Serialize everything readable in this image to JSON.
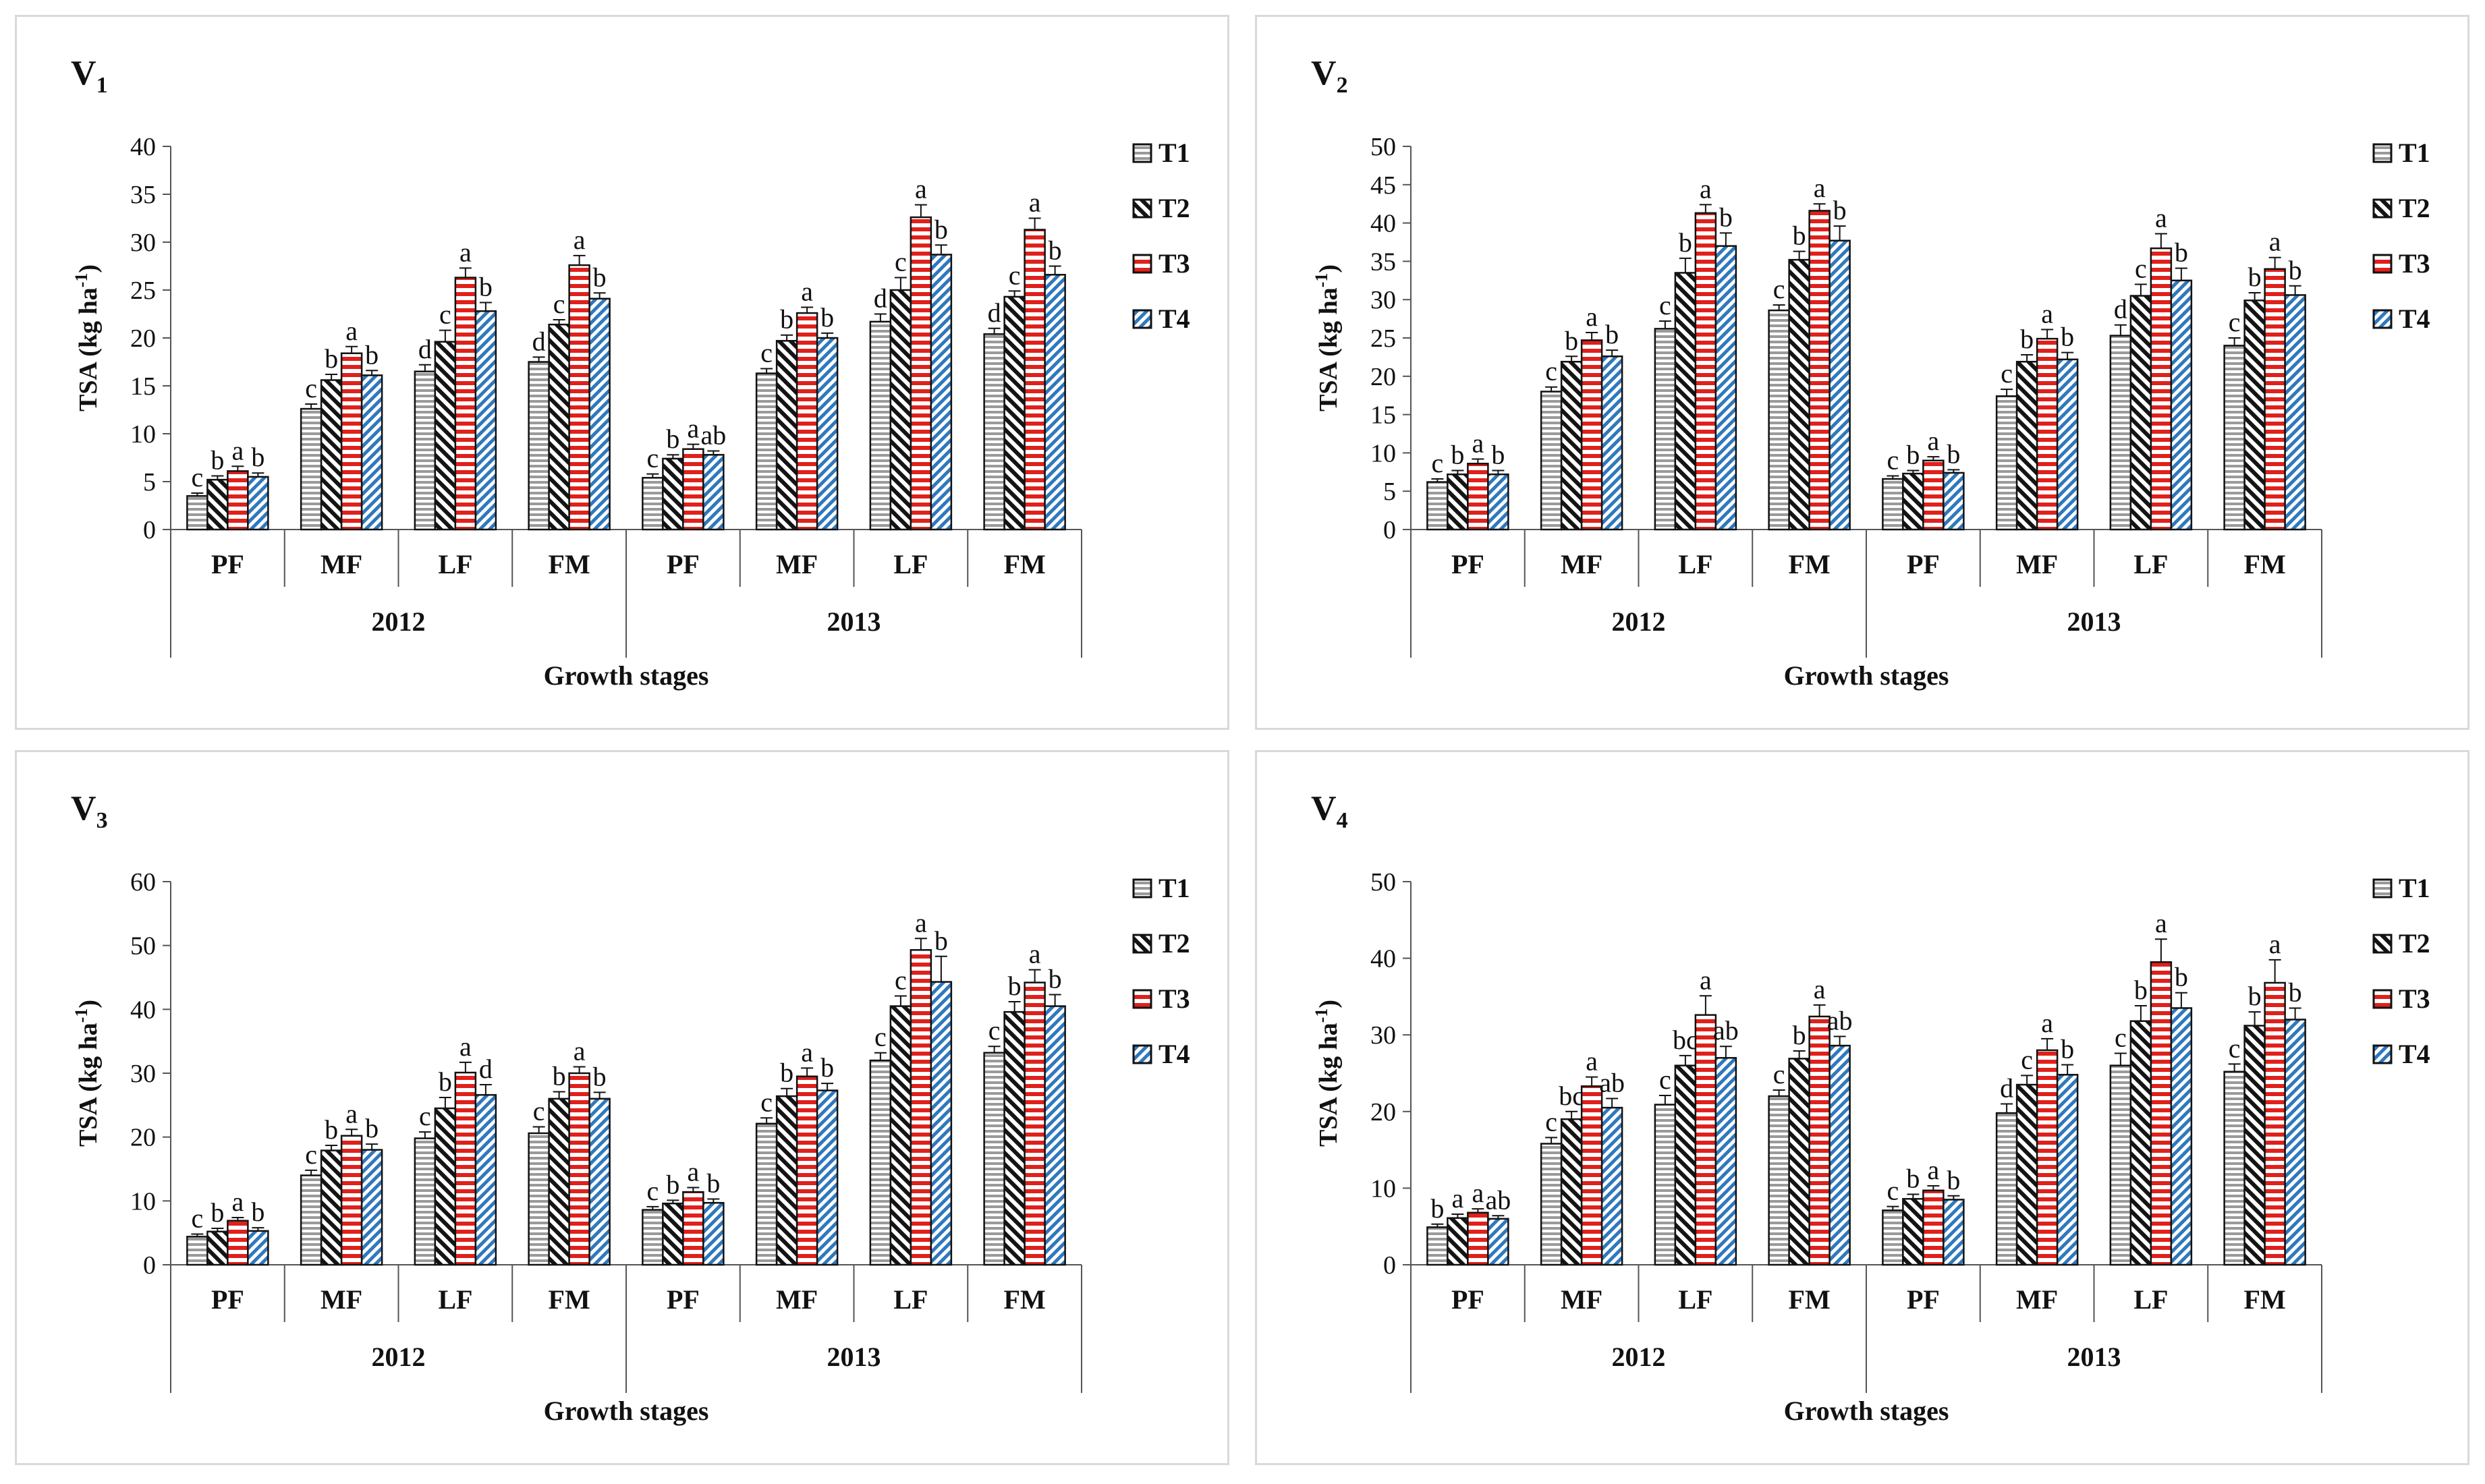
{
  "colors": {
    "T1": "#9a9a9a",
    "T2": "#141414",
    "T3": "#e0201b",
    "T4": "#2f78bd",
    "axis": "#555555",
    "border": "#d9d9d9"
  },
  "chart_data": [
    {
      "type": "bar",
      "title": "V",
      "title_subscript": "1",
      "ylabel": "TSA (kg ha",
      "ylabel_sup": "-1",
      "ylabel_close": ")",
      "xlabel": "Growth stages",
      "ylim": [
        0,
        40
      ],
      "yticks": [
        0,
        5,
        10,
        15,
        20,
        25,
        30,
        35,
        40
      ],
      "years": [
        "2012",
        "2013"
      ],
      "categories": [
        "PF",
        "MF",
        "LF",
        "FM",
        "PF",
        "MF",
        "LF",
        "FM"
      ],
      "series": [
        {
          "name": "T1",
          "values": [
            3.5,
            12.6,
            16.5,
            17.5,
            5.4,
            16.3,
            21.7,
            20.4
          ],
          "errors": [
            0.3,
            0.5,
            0.7,
            0.5,
            0.4,
            0.5,
            0.8,
            0.6
          ],
          "letters": [
            "c",
            "c",
            "d",
            "d",
            "c",
            "c",
            "d",
            "d"
          ]
        },
        {
          "name": "T2",
          "values": [
            5.2,
            15.6,
            19.6,
            21.4,
            7.4,
            19.7,
            25.0,
            24.3
          ],
          "errors": [
            0.4,
            0.6,
            1.2,
            0.5,
            0.4,
            0.6,
            1.3,
            0.6
          ],
          "letters": [
            "b",
            "b",
            "c",
            "c",
            "b",
            "b",
            "c",
            "c"
          ]
        },
        {
          "name": "T3",
          "values": [
            6.1,
            18.4,
            26.3,
            27.6,
            8.4,
            22.6,
            32.6,
            31.3
          ],
          "errors": [
            0.5,
            0.7,
            1.0,
            1.0,
            0.5,
            0.6,
            1.3,
            1.2
          ],
          "letters": [
            "a",
            "a",
            "a",
            "a",
            "a",
            "a",
            "a",
            "a"
          ]
        },
        {
          "name": "T4",
          "values": [
            5.5,
            16.1,
            22.8,
            24.1,
            7.8,
            20.0,
            28.7,
            26.6
          ],
          "errors": [
            0.4,
            0.5,
            0.9,
            0.6,
            0.4,
            0.5,
            1.0,
            0.9
          ],
          "letters": [
            "b",
            "b",
            "b",
            "b",
            "ab",
            "b",
            "b",
            "b"
          ]
        }
      ]
    },
    {
      "type": "bar",
      "title": "V",
      "title_subscript": "2",
      "ylabel": "TSA (kg ha",
      "ylabel_sup": "-1",
      "ylabel_close": ")",
      "xlabel": "Growth stages",
      "ylim": [
        0,
        50
      ],
      "yticks": [
        0,
        5,
        10,
        15,
        20,
        25,
        30,
        35,
        40,
        45,
        50
      ],
      "years": [
        "2012",
        "2013"
      ],
      "categories": [
        "PF",
        "MF",
        "LF",
        "FM",
        "PF",
        "MF",
        "LF",
        "FM"
      ],
      "series": [
        {
          "name": "T1",
          "values": [
            6.2,
            18.0,
            26.2,
            28.6,
            6.6,
            17.4,
            25.3,
            24.0
          ],
          "errors": [
            0.4,
            0.6,
            1.0,
            0.7,
            0.4,
            0.9,
            1.4,
            1.0
          ],
          "letters": [
            "c",
            "c",
            "c",
            "c",
            "c",
            "c",
            "d",
            "c"
          ]
        },
        {
          "name": "T2",
          "values": [
            7.2,
            21.9,
            33.5,
            35.2,
            7.3,
            21.9,
            30.5,
            29.9
          ],
          "errors": [
            0.5,
            0.7,
            1.9,
            1.1,
            0.4,
            0.9,
            1.5,
            1.0
          ],
          "letters": [
            "b",
            "b",
            "b",
            "b",
            "b",
            "b",
            "c",
            "b"
          ]
        },
        {
          "name": "T3",
          "values": [
            8.6,
            24.7,
            41.3,
            41.6,
            9.0,
            24.9,
            36.7,
            34.0
          ],
          "errors": [
            0.6,
            1.0,
            1.1,
            0.9,
            0.5,
            1.2,
            1.9,
            1.5
          ],
          "letters": [
            "a",
            "a",
            "a",
            "a",
            "a",
            "a",
            "a",
            "a"
          ]
        },
        {
          "name": "T4",
          "values": [
            7.2,
            22.6,
            37.0,
            37.7,
            7.4,
            22.2,
            32.5,
            30.6
          ],
          "errors": [
            0.5,
            0.8,
            1.7,
            1.9,
            0.4,
            0.9,
            1.6,
            1.2
          ],
          "letters": [
            "b",
            "b",
            "b",
            "b",
            "b",
            "b",
            "b",
            "b"
          ]
        }
      ]
    },
    {
      "type": "bar",
      "title": "V",
      "title_subscript": "3",
      "ylabel": "TSA (kg ha",
      "ylabel_sup": "-1",
      "ylabel_close": ")",
      "xlabel": "Growth stages",
      "ylim": [
        0,
        60
      ],
      "yticks": [
        0,
        10,
        20,
        30,
        40,
        50,
        60
      ],
      "years": [
        "2012",
        "2013"
      ],
      "categories": [
        "PF",
        "MF",
        "LF",
        "FM",
        "PF",
        "MF",
        "LF",
        "FM"
      ],
      "series": [
        {
          "name": "T1",
          "values": [
            4.4,
            14.0,
            19.8,
            20.6,
            8.6,
            22.1,
            32.0,
            33.2
          ],
          "errors": [
            0.4,
            0.8,
            1.0,
            1.0,
            0.5,
            0.9,
            1.2,
            1.0
          ],
          "letters": [
            "c",
            "c",
            "c",
            "c",
            "c",
            "c",
            "c",
            "c"
          ]
        },
        {
          "name": "T2",
          "values": [
            5.2,
            17.9,
            24.5,
            26.0,
            9.6,
            26.4,
            40.5,
            39.6
          ],
          "errors": [
            0.5,
            0.8,
            1.7,
            1.1,
            0.5,
            1.2,
            1.6,
            1.6
          ],
          "letters": [
            "b",
            "b",
            "b",
            "b",
            "b",
            "b",
            "c",
            "b"
          ]
        },
        {
          "name": "T3",
          "values": [
            6.9,
            20.2,
            30.1,
            30.0,
            11.4,
            29.5,
            49.3,
            44.2
          ],
          "errors": [
            0.5,
            1.0,
            1.6,
            1.0,
            0.7,
            1.3,
            1.8,
            2.0
          ],
          "letters": [
            "a",
            "a",
            "a",
            "a",
            "a",
            "a",
            "a",
            "a"
          ]
        },
        {
          "name": "T4",
          "values": [
            5.3,
            18.0,
            26.6,
            26.0,
            9.7,
            27.3,
            44.3,
            40.5
          ],
          "errors": [
            0.5,
            0.9,
            1.6,
            1.0,
            0.6,
            1.1,
            4.0,
            1.8
          ],
          "letters": [
            "b",
            "b",
            "d",
            "b",
            "b",
            "b",
            "b",
            "b"
          ]
        }
      ]
    },
    {
      "type": "bar",
      "title": "V",
      "title_subscript": "4",
      "ylabel": "TSA (kg ha",
      "ylabel_sup": "-1",
      "ylabel_close": ")",
      "xlabel": "Growth stages",
      "ylim": [
        0,
        50
      ],
      "yticks": [
        0,
        10,
        20,
        30,
        40,
        50
      ],
      "years": [
        "2012",
        "2013"
      ],
      "categories": [
        "PF",
        "MF",
        "LF",
        "FM",
        "PF",
        "MF",
        "LF",
        "FM"
      ],
      "series": [
        {
          "name": "T1",
          "values": [
            4.9,
            15.8,
            20.9,
            22.0,
            7.1,
            19.8,
            26.0,
            25.2
          ],
          "errors": [
            0.4,
            0.8,
            1.2,
            0.8,
            0.5,
            1.2,
            1.6,
            1.0
          ],
          "letters": [
            "b",
            "c",
            "c",
            "c",
            "c",
            "d",
            "c",
            "c"
          ]
        },
        {
          "name": "T2",
          "values": [
            6.1,
            19.0,
            26.0,
            26.9,
            8.6,
            23.5,
            31.8,
            31.2
          ],
          "errors": [
            0.5,
            1.0,
            1.3,
            1.0,
            0.6,
            1.2,
            2.0,
            1.8
          ],
          "letters": [
            "a",
            "bc",
            "bc",
            "b",
            "b",
            "c",
            "b",
            "b"
          ]
        },
        {
          "name": "T3",
          "values": [
            6.8,
            23.3,
            32.6,
            32.4,
            9.7,
            28.0,
            39.5,
            36.8
          ],
          "errors": [
            0.5,
            1.2,
            2.5,
            1.5,
            0.6,
            1.5,
            3.0,
            3.0
          ],
          "letters": [
            "a",
            "a",
            "a",
            "a",
            "a",
            "a",
            "a",
            "a"
          ]
        },
        {
          "name": "T4",
          "values": [
            6.0,
            20.5,
            27.0,
            28.6,
            8.5,
            24.8,
            33.5,
            32.0
          ],
          "errors": [
            0.4,
            1.2,
            1.5,
            1.2,
            0.5,
            1.3,
            2.0,
            1.5
          ],
          "letters": [
            "ab",
            "ab",
            "ab",
            "ab",
            "b",
            "b",
            "b",
            "b"
          ]
        }
      ]
    }
  ]
}
